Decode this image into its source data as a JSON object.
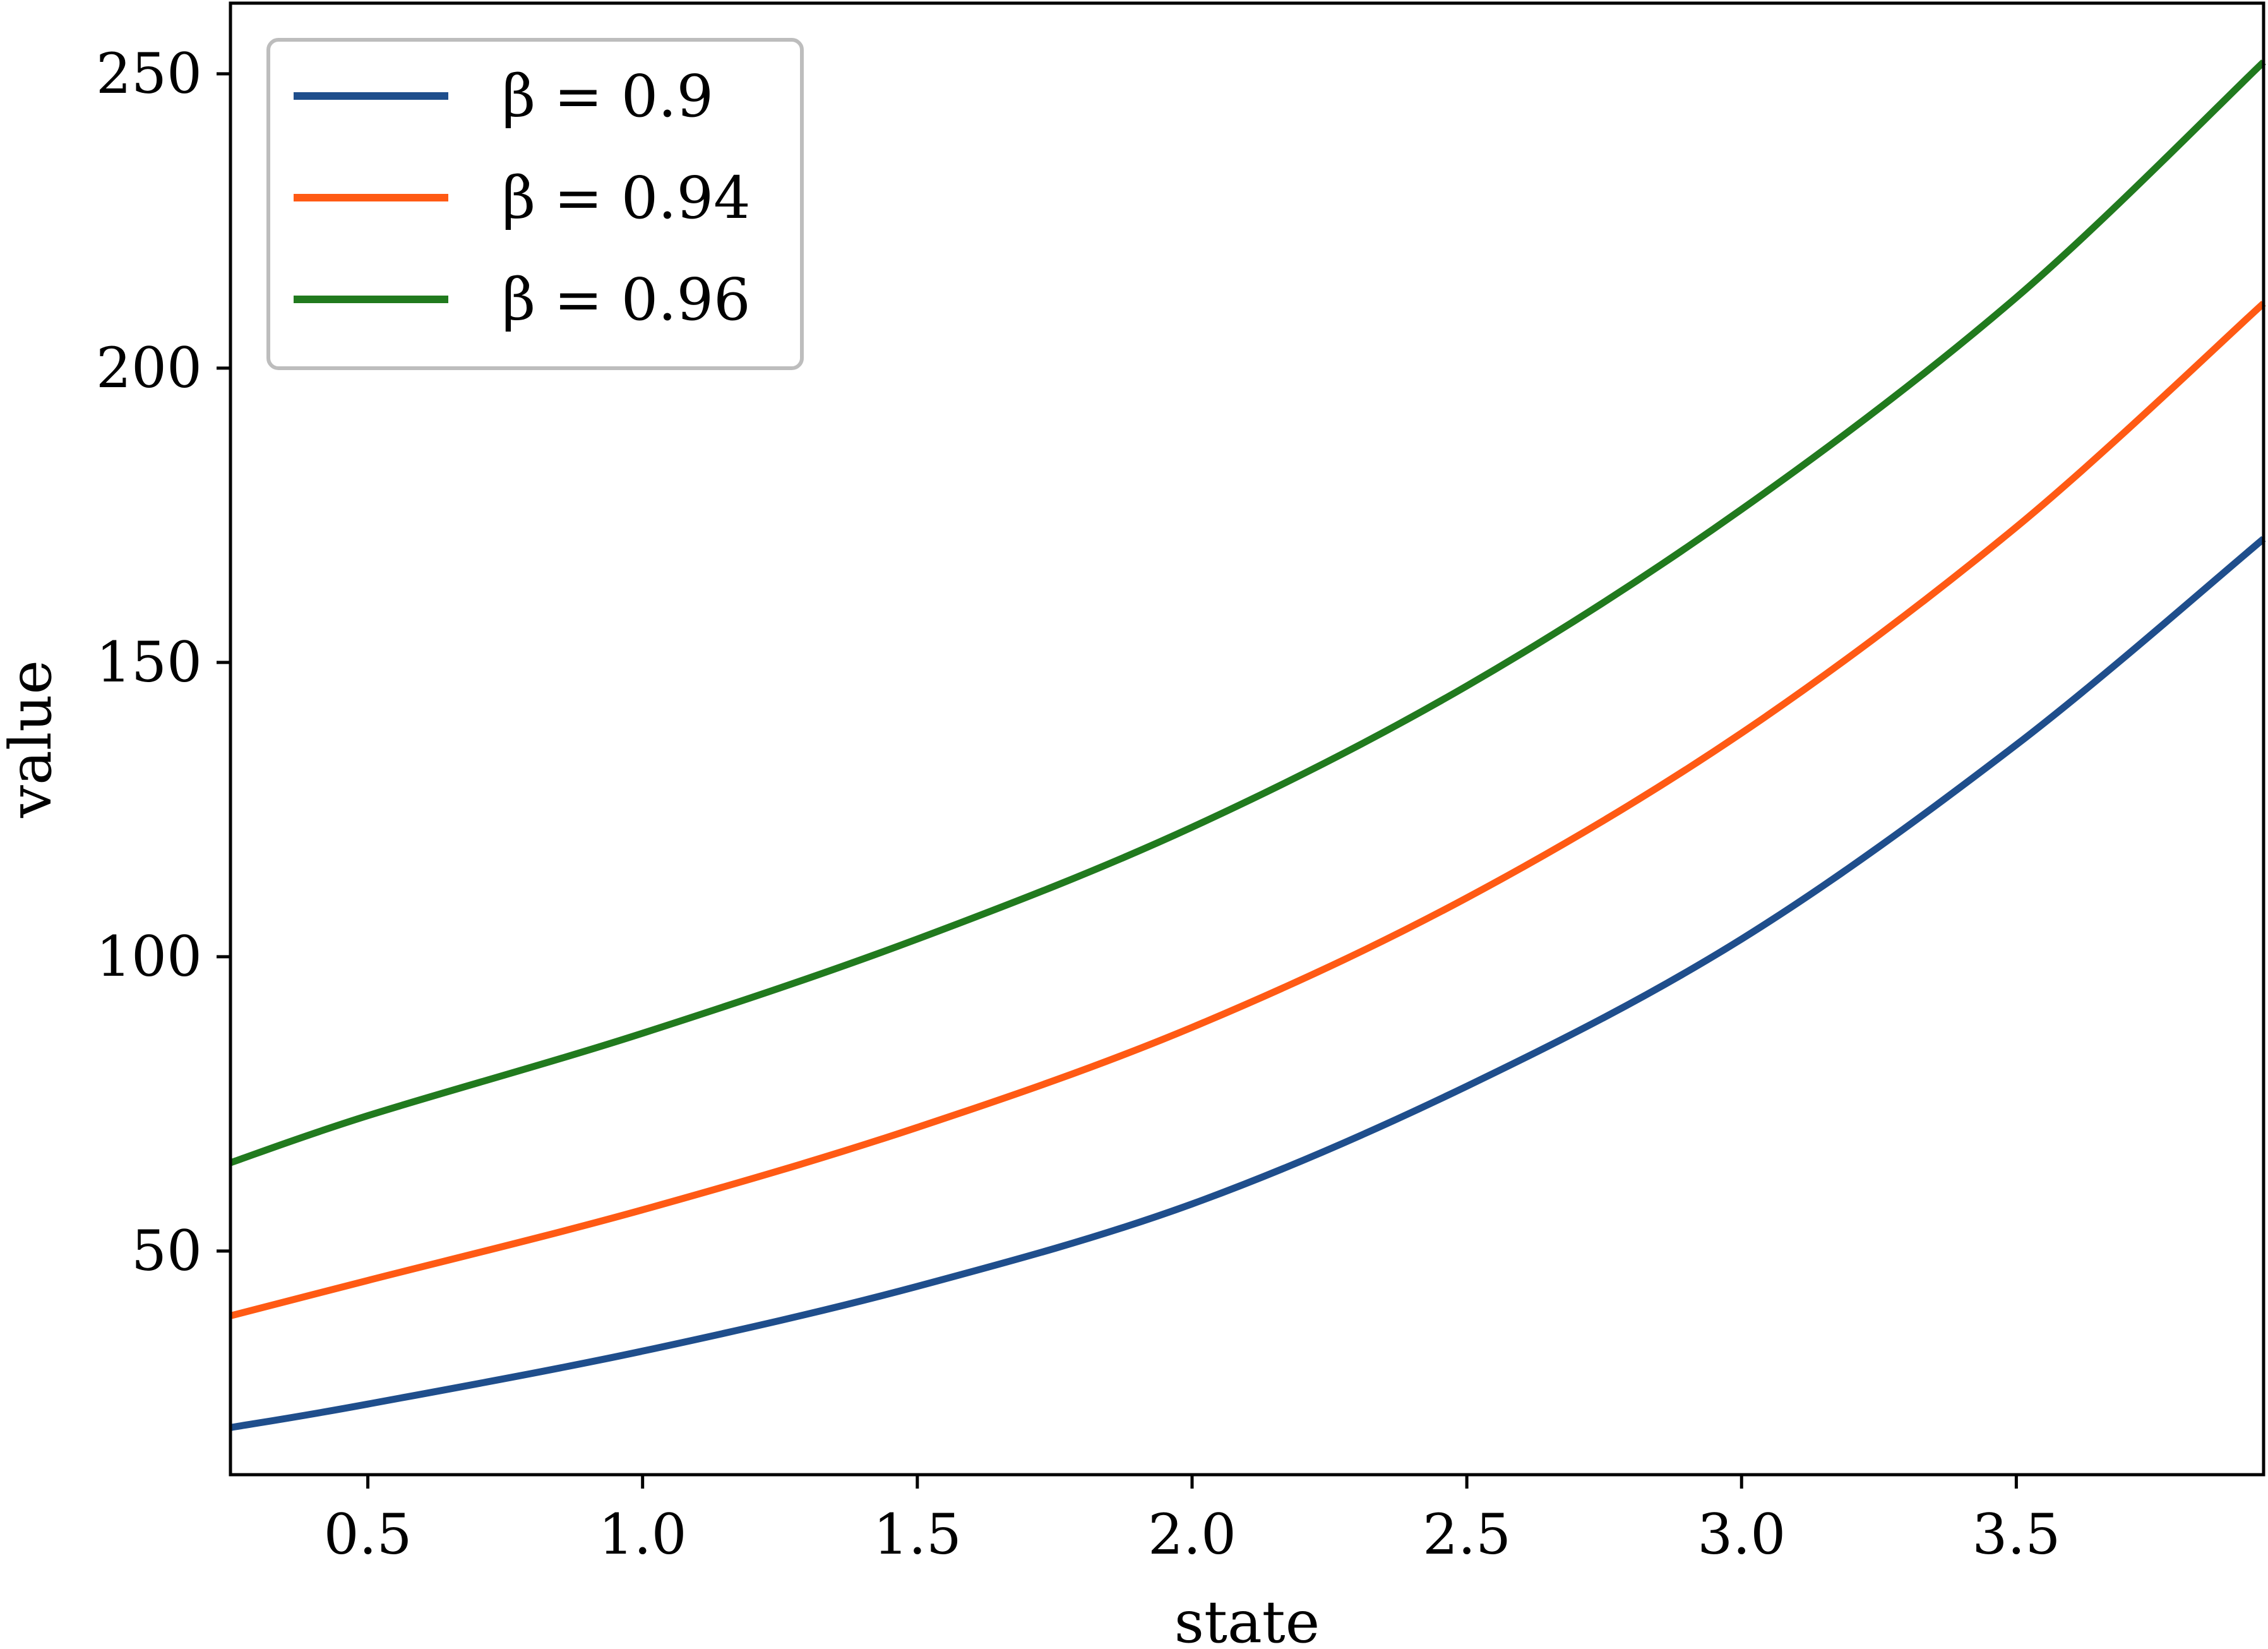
{
  "chart_data": {
    "type": "line",
    "title": "",
    "xlabel": "state",
    "ylabel": "value",
    "xlim": [
      0.25,
      3.95
    ],
    "ylim": [
      12,
      262
    ],
    "xticks": [
      0.5,
      1.0,
      1.5,
      2.0,
      2.5,
      3.0,
      3.5
    ],
    "xtick_labels": [
      "0.5",
      "1.0",
      "1.5",
      "2.0",
      "2.5",
      "3.0",
      "3.5"
    ],
    "yticks": [
      50,
      100,
      150,
      200,
      250
    ],
    "ytick_labels": [
      "50",
      "100",
      "150",
      "200",
      "250"
    ],
    "grid": false,
    "legend_position": "top-left",
    "x": [
      0.25,
      0.5,
      1.0,
      1.5,
      2.0,
      2.5,
      3.0,
      3.5,
      3.95
    ],
    "series": [
      {
        "name": "β = 0.9",
        "color": "#1f4e8c",
        "values": [
          20,
          24,
          33,
          44,
          58,
          78,
          103,
          136,
          171
        ]
      },
      {
        "name": "β = 0.94",
        "color": "#ff5a14",
        "values": [
          39,
          45,
          57,
          71,
          88,
          110,
          138,
          173,
          211
        ]
      },
      {
        "name": "β = 0.96",
        "color": "#217a1e",
        "values": [
          65,
          73,
          87,
          103,
          122,
          146,
          176,
          212,
          252
        ]
      }
    ]
  }
}
